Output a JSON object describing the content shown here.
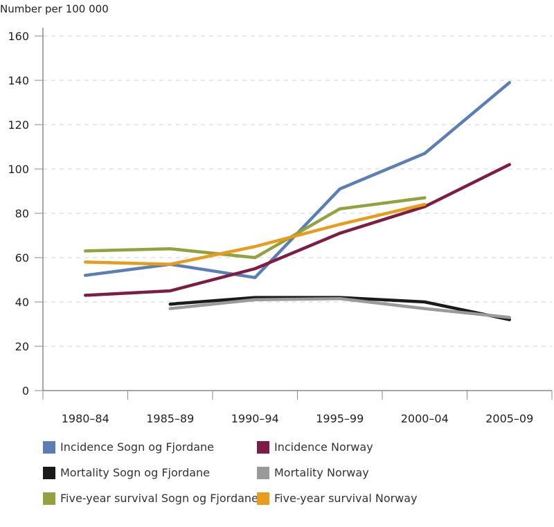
{
  "chart_data": {
    "type": "line",
    "ylabel": "Number per 100 000",
    "ylim": [
      0,
      160
    ],
    "yticks": [
      0,
      20,
      40,
      60,
      80,
      100,
      120,
      140,
      160
    ],
    "grid": "horizontal dashed",
    "categories": [
      "1980–84",
      "1985–89",
      "1990–94",
      "1995–99",
      "2000–04",
      "2005–09"
    ],
    "legend_position": "bottom",
    "series": [
      {
        "name": "Incidence Sogn og Fjordane",
        "color": "#5b7fb5",
        "values": [
          52,
          57,
          51,
          91,
          107,
          139
        ]
      },
      {
        "name": "Incidence Norway",
        "color": "#7d1d45",
        "values": [
          43,
          45,
          55,
          71,
          83,
          102
        ]
      },
      {
        "name": "Mortality Sogn og Fjordane",
        "color": "#1a1a1a",
        "values": [
          null,
          39,
          42,
          42,
          40,
          32
        ]
      },
      {
        "name": "Mortality Norway",
        "color": "#9a9a9a",
        "values": [
          null,
          37,
          41,
          41.5,
          37,
          33
        ]
      },
      {
        "name": "Five-year survival Sogn og Fjordane",
        "color": "#93a13f",
        "values": [
          63,
          64,
          60,
          82,
          87,
          null
        ]
      },
      {
        "name": "Five-year survival Norway",
        "color": "#e99c1c",
        "values": [
          58,
          57,
          65,
          75,
          84,
          null
        ]
      }
    ]
  }
}
